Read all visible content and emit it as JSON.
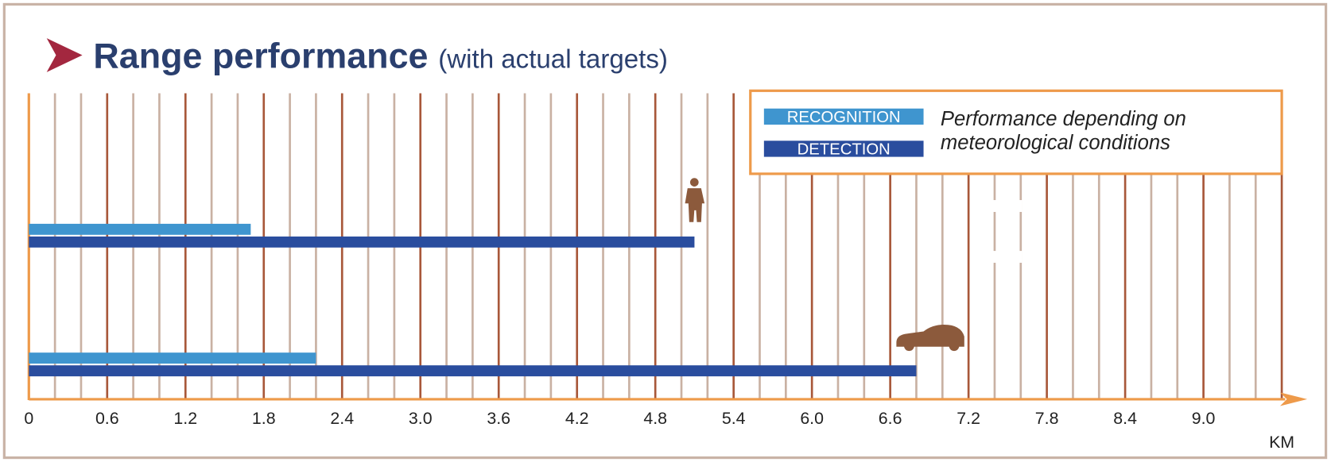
{
  "chart_data": {
    "type": "hbar",
    "title": "Range performance",
    "subtitle": "(with actual targets)",
    "x_label": "KM",
    "note": [
      "Performance depending on",
      "meteorological conditions"
    ],
    "categories": [
      null,
      null
    ],
    "series": [
      {
        "name": "RECOGNITION",
        "color": "#3f95cf",
        "values": [
          1.7,
          2.2
        ]
      },
      {
        "name": "DETECTION",
        "color": "#2a4d9e",
        "values": [
          5.1,
          6.8
        ]
      }
    ],
    "xlim": [
      0,
      9.6
    ],
    "xticks": [
      0,
      0.6,
      1.2,
      1.8,
      2.4,
      {
        "value": 3,
        "label": "3.0"
      },
      3.6,
      4.2,
      4.8,
      5.4,
      {
        "value": 6,
        "label": "6.0"
      },
      6.6,
      7.2,
      7.8,
      8.4,
      {
        "value": 9,
        "label": "9.0"
      }
    ],
    "xminorticks": [
      0.2,
      0.4,
      0.8,
      1.0,
      1.4,
      1.6,
      2.0,
      2.2,
      2.6,
      2.8,
      3.2,
      3.4,
      3.8,
      4.0,
      4.4,
      4.6,
      5.0,
      5.2,
      5.6,
      5.8,
      6.2,
      6.4,
      6.8,
      7.0,
      7.4,
      7.6,
      8.0,
      8.2,
      8.6,
      8.8,
      9.2,
      9.4
    ],
    "grid": true
  }
}
